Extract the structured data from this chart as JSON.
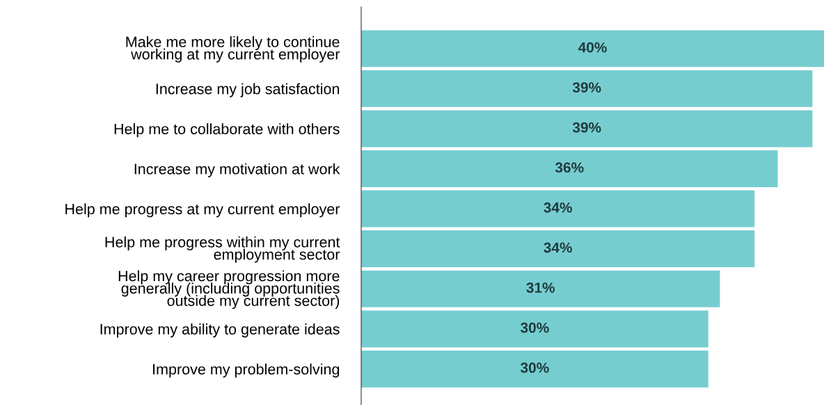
{
  "chart_data": {
    "type": "bar",
    "orientation": "horizontal",
    "categories": [
      "Make me more likely to continue\nworking at my current employer",
      "Increase my job satisfaction",
      "Help me to collaborate with others",
      "Increase my motivation at work",
      "Help me progress at my current employer",
      "Help me progress within my current\nemployment sector",
      "Help my career progression more\ngenerally (including opportunities\noutside my current sector)",
      "Improve my ability to generate ideas",
      "Improve my problem-solving"
    ],
    "values": [
      40,
      39,
      39,
      36,
      34,
      34,
      31,
      30,
      30
    ],
    "value_labels": [
      "40%",
      "39%",
      "39%",
      "36%",
      "34%",
      "34%",
      "31%",
      "30%",
      "30%"
    ],
    "color": "#76cdd0",
    "xlim": [
      0,
      40
    ],
    "tick_labels": "y",
    "grid": false,
    "legend": false
  }
}
